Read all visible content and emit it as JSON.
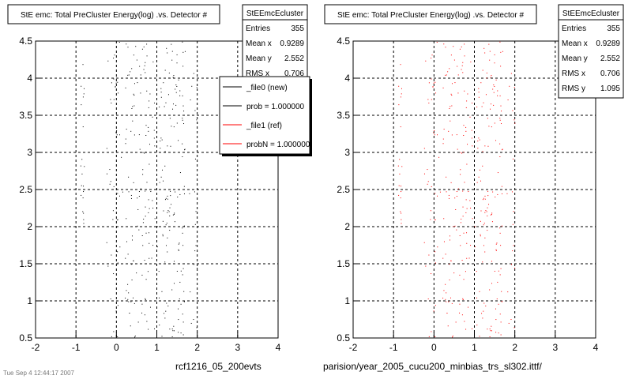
{
  "colors": {
    "new": "#000000",
    "ref": "#ff0000",
    "grid": "#000000",
    "background": "#ffffff"
  },
  "footer": {
    "left_label": "rcf1216_05_200evts",
    "right_label": "parision/year_2005_cucu200_minbias_trs_sl302.ittf/",
    "corner_text": "Tue Sep 4 12:44:17 2007"
  },
  "chart_data": [
    {
      "type": "scatter",
      "title": "StE emc: Total PreCluster Energy(log) .vs. Detector #",
      "xlabel": "",
      "ylabel": "",
      "xlim": [
        -2,
        4
      ],
      "ylim": [
        0.5,
        4.5
      ],
      "xticks": [
        "-2",
        "-1",
        "0",
        "1",
        "2",
        "3",
        "4"
      ],
      "yticks": [
        "0.5",
        "1",
        "1.5",
        "2",
        "2.5",
        "3",
        "3.5",
        "4",
        "4.5"
      ],
      "grid": true,
      "series": [
        {
          "name": "_file0 (new)",
          "color": "#000000",
          "x_bands": [
            [
              -0.9,
              -0.8
            ],
            [
              -0.25,
              0.15
            ],
            [
              0.2,
              0.95
            ],
            [
              1.0,
              1.7
            ],
            [
              1.8,
              2.0
            ]
          ],
          "band_y_ranges": [
            [
              1.6,
              4.2
            ],
            [
              0.5,
              4.5
            ],
            [
              0.5,
              4.5
            ],
            [
              0.5,
              4.5
            ],
            [
              0.6,
              4.5
            ]
          ],
          "band_counts": [
            20,
            45,
            130,
            140,
            20
          ]
        }
      ],
      "stats": {
        "title": "StEEmcEcluster",
        "rows": [
          {
            "label": "Entries",
            "value": "355"
          },
          {
            "label": "Mean x",
            "value": "0.9289"
          },
          {
            "label": "Mean y",
            "value": "2.552"
          },
          {
            "label": "RMS x",
            "value": "0.706"
          }
        ]
      },
      "legend": {
        "placement": "top-right",
        "entries": [
          {
            "label": "_file0 (new)",
            "color": "#000000"
          },
          {
            "label": "prob = 1.000000",
            "color": "#000000"
          },
          {
            "label": "_file1 (ref)",
            "color": "#ff0000"
          },
          {
            "label": "probN = 1.000000",
            "color": "#ff0000"
          }
        ]
      }
    },
    {
      "type": "scatter",
      "title": "StE emc: Total PreCluster Energy(log) .vs. Detector #",
      "xlabel": "",
      "ylabel": "",
      "xlim": [
        -2,
        4
      ],
      "ylim": [
        0.5,
        4.5
      ],
      "xticks": [
        "-2",
        "-1",
        "0",
        "1",
        "2",
        "3",
        "4"
      ],
      "yticks": [
        "0.5",
        "1",
        "1.5",
        "2",
        "2.5",
        "3",
        "3.5",
        "4",
        "4.5"
      ],
      "grid": true,
      "series": [
        {
          "name": "_file1 (ref)",
          "color": "#ff0000",
          "x_bands": [
            [
              -0.9,
              -0.8
            ],
            [
              -0.25,
              0.15
            ],
            [
              0.2,
              0.95
            ],
            [
              1.0,
              1.7
            ],
            [
              1.8,
              2.0
            ]
          ],
          "band_y_ranges": [
            [
              1.6,
              4.2
            ],
            [
              0.5,
              4.5
            ],
            [
              0.5,
              4.5
            ],
            [
              0.5,
              4.5
            ],
            [
              0.6,
              4.5
            ]
          ],
          "band_counts": [
            20,
            45,
            130,
            140,
            20
          ]
        }
      ],
      "stats": {
        "title": "StEEmcEcluster",
        "rows": [
          {
            "label": "Entries",
            "value": "355"
          },
          {
            "label": "Mean x",
            "value": "0.9289"
          },
          {
            "label": "Mean y",
            "value": "2.552"
          },
          {
            "label": "RMS x",
            "value": "0.706"
          },
          {
            "label": "RMS y",
            "value": "1.095"
          }
        ]
      }
    }
  ]
}
